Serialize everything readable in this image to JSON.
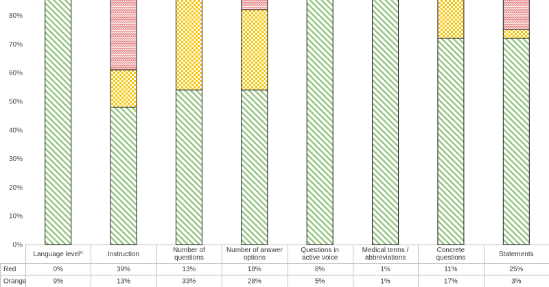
{
  "chart_data": {
    "type": "bar",
    "stacked": true,
    "categories": [
      "Language level^",
      "Instruction",
      "Number of questions",
      "Number of answer options",
      "Questions in active voice",
      "Medical terms / abbreviations",
      "Concrete questions",
      "Statements"
    ],
    "series": [
      {
        "name": "Green",
        "values": [
          91,
          48,
          54,
          54,
          87,
          98,
          72,
          72
        ],
        "color": "#92c47d",
        "pattern": "diagonal-stripes"
      },
      {
        "name": "Orange",
        "values": [
          9,
          13,
          33,
          28,
          5,
          1,
          17,
          3
        ],
        "color": "#f6c400",
        "pattern": "checker"
      },
      {
        "name": "Red",
        "values": [
          0,
          39,
          13,
          18,
          8,
          1,
          11,
          25
        ],
        "color": "#e06666",
        "pattern": "zigzag"
      }
    ],
    "y_ticks": [
      "0%",
      "10%",
      "20%",
      "30%",
      "40%",
      "50%",
      "60%",
      "70%",
      "80%"
    ],
    "ylim": [
      0,
      100
    ],
    "table": {
      "rows": [
        {
          "label": "Red",
          "cells": [
            "0%",
            "39%",
            "13%",
            "18%",
            "8%",
            "1%",
            "11%",
            "25%"
          ]
        },
        {
          "label": "Orange",
          "cells": [
            "9%",
            "13%",
            "33%",
            "28%",
            "5%",
            "1%",
            "17%",
            "3%"
          ]
        }
      ]
    },
    "grid": false
  }
}
